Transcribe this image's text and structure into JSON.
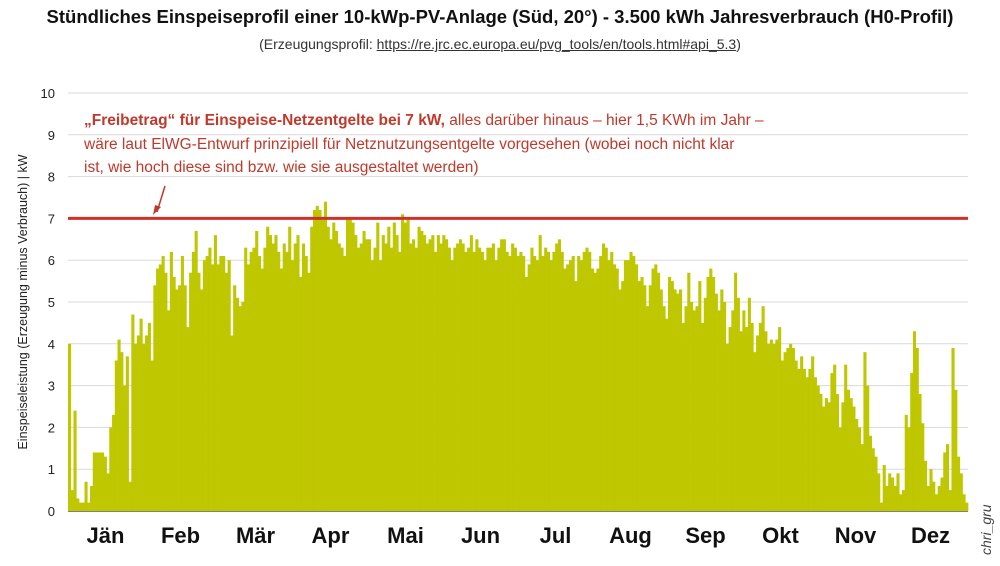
{
  "header": {
    "title": "Stündliches Einspeiseprofil einer 10-kWp-PV-Anlage (Süd, 20°) - 3.500 kWh Jahresverbrauch (H0-Profil)",
    "subtitle_prefix": "(Erzeugungsprofil: ",
    "subtitle_url": "https://re.jrc.ec.europa.eu/pvg_tools/en/tools.html#api_5.3",
    "subtitle_suffix": ")"
  },
  "credit": "chri_gru",
  "colors": {
    "bars": "#bfc700",
    "threshold_line": "#d0302a",
    "annotation_text": "#c0392b",
    "grid": "#d9d9d9"
  },
  "chart_data": {
    "type": "bar",
    "ylabel": "Einspeiseleistung (Erzeugung minus Verbrauch) | kW",
    "ylim": [
      0,
      10
    ],
    "yticks": [
      "0",
      "1",
      "2",
      "3",
      "4",
      "5",
      "6",
      "7",
      "8",
      "9",
      "10"
    ],
    "grid": "horizontal",
    "months": [
      "Jän",
      "Feb",
      "Mär",
      "Apr",
      "Mai",
      "Jun",
      "Jul",
      "Aug",
      "Sep",
      "Okt",
      "Nov",
      "Dez"
    ],
    "threshold": {
      "value": 7
    },
    "annotation": {
      "bold": "„Freibetrag“ für Einspeise-Netzentgelte bei 7 kW,",
      "line1_rest": " alles darüber hinaus – hier 1,5 KWh im Jahr –",
      "line2": "wäre laut ElWG-Entwurf prinzipiell für Netznutzungsentgelte vorgesehen (wobei noch nicht klar",
      "line3": "ist, wie hoch diese sind bzw. wie sie ausgestaltet werden)"
    },
    "daily_max": [
      4.0,
      0.5,
      2.4,
      0.3,
      0.2,
      0.2,
      0.7,
      0.2,
      0.6,
      1.4,
      1.4,
      1.4,
      1.4,
      1.3,
      0.9,
      2.0,
      2.3,
      3.6,
      4.1,
      3.8,
      3.0,
      3.7,
      0.7,
      4.7,
      4.0,
      4.2,
      4.6,
      4.0,
      4.2,
      4.5,
      3.6,
      5.4,
      5.8,
      5.9,
      6.1,
      5.7,
      4.8,
      6.2,
      5.6,
      5.3,
      5.4,
      6.1,
      5.4,
      4.4,
      5.7,
      6.2,
      6.7,
      5.7,
      5.3,
      6.0,
      6.1,
      6.3,
      5.9,
      6.6,
      5.9,
      6.1,
      6.1,
      5.7,
      6.0,
      4.2,
      5.4,
      5.1,
      4.9,
      5.0,
      6.3,
      5.9,
      6.2,
      6.3,
      6.7,
      6.1,
      5.8,
      6.3,
      6.8,
      6.6,
      6.4,
      6.6,
      6.2,
      5.8,
      6.4,
      6.2,
      6.8,
      6.0,
      6.4,
      6.6,
      5.6,
      6.4,
      6.1,
      5.7,
      6.8,
      7.2,
      7.3,
      7.2,
      7.0,
      7.4,
      6.8,
      6.5,
      6.9,
      6.7,
      6.4,
      6.3,
      6.1,
      7.0,
      7.0,
      6.9,
      6.6,
      6.3,
      6.4,
      6.7,
      6.5,
      6.5,
      6.0,
      6.3,
      6.9,
      6.0,
      6.6,
      6.4,
      6.8,
      6.3,
      6.9,
      6.6,
      6.2,
      7.1,
      6.9,
      7.0,
      6.4,
      6.5,
      6.3,
      6.8,
      6.7,
      6.6,
      6.4,
      6.5,
      6.6,
      6.2,
      6.6,
      6.4,
      6.6,
      6.5,
      6.3,
      6.0,
      6.3,
      6.4,
      6.5,
      6.4,
      6.2,
      6.3,
      6.6,
      6.2,
      6.5,
      6.3,
      6.2,
      6.0,
      6.3,
      6.3,
      6.4,
      6.0,
      6.3,
      6.5,
      6.5,
      6.2,
      6.1,
      6.4,
      6.3,
      6.1,
      6.2,
      6.1,
      5.6,
      5.9,
      6.3,
      6.1,
      6.0,
      6.6,
      6.1,
      6.3,
      6.2,
      6.0,
      6.2,
      6.4,
      6.5,
      6.2,
      5.8,
      5.9,
      6.0,
      6.1,
      5.5,
      6.1,
      6.0,
      6.2,
      6.3,
      6.2,
      5.8,
      5.7,
      5.8,
      6.1,
      6.4,
      6.3,
      6.0,
      6.2,
      5.9,
      5.8,
      5.3,
      5.5,
      6.0,
      6.0,
      6.2,
      6.1,
      5.9,
      5.5,
      5.6,
      5.4,
      4.9,
      5.4,
      5.8,
      5.9,
      5.7,
      5.3,
      4.9,
      4.6,
      5.6,
      5.5,
      5.3,
      5.2,
      5.3,
      4.5,
      4.9,
      5.7,
      5.0,
      4.8,
      4.9,
      5.5,
      4.5,
      5.1,
      5.6,
      5.8,
      5.6,
      5.2,
      4.8,
      5.3,
      5.0,
      4.0,
      4.4,
      4.8,
      5.7,
      5.1,
      4.3,
      4.8,
      4.4,
      5.1,
      4.5,
      3.8,
      4.2,
      4.5,
      4.9,
      4.3,
      4.0,
      4.1,
      4.0,
      4.1,
      4.4,
      3.6,
      3.8,
      3.9,
      4.0,
      3.9,
      3.6,
      3.4,
      3.7,
      3.4,
      3.2,
      3.4,
      3.7,
      3.2,
      3.0,
      2.8,
      2.5,
      2.7,
      2.6,
      3.3,
      3.5,
      2.8,
      2.0,
      2.6,
      3.5,
      2.9,
      2.7,
      2.5,
      2.2,
      2.0,
      1.6,
      3.8,
      3.0,
      1.8,
      1.5,
      1.3,
      0.9,
      0.2,
      1.1,
      0.6,
      0.9,
      0.8,
      0.6,
      0.9,
      0.4,
      0.5,
      2.3,
      2.0,
      3.3,
      4.3,
      3.9,
      2.8,
      2.1,
      1.2,
      0.6,
      1.0,
      0.7,
      0.4,
      0.6,
      0.8,
      1.4,
      1.6,
      0.5,
      3.9,
      2.9,
      1.3,
      0.9,
      0.4,
      0.2
    ]
  }
}
